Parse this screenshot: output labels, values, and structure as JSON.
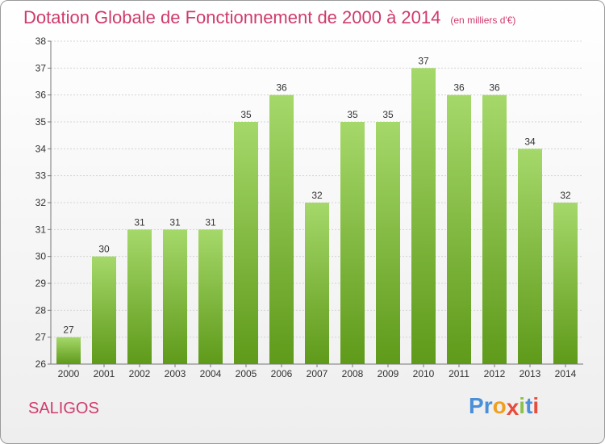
{
  "title": "Dotation Globale de Fonctionnement de 2000 à 2014",
  "unit": "(en milliers d'€)",
  "city": "SALIGOS",
  "logo": [
    "P",
    "r",
    "o",
    "x",
    "i",
    "t",
    "i"
  ],
  "colors": {
    "title": "#d03a6b",
    "bar_top": "#a5d86a",
    "bar_bottom": "#5f9a1a",
    "logo": [
      "#4a8fd8",
      "#4a8fd8",
      "#f0a020",
      "#e84c3c",
      "#8bc34a",
      "#4a8fd8",
      "#e84c3c"
    ]
  },
  "chart_data": {
    "type": "bar",
    "categories": [
      "2000",
      "2001",
      "2002",
      "2003",
      "2004",
      "2005",
      "2006",
      "2007",
      "2008",
      "2009",
      "2010",
      "2011",
      "2012",
      "2013",
      "2014"
    ],
    "values": [
      27,
      30,
      31,
      31,
      31,
      35,
      36,
      32,
      35,
      35,
      37,
      36,
      36,
      34,
      32
    ],
    "ylim": [
      26,
      38
    ],
    "yticks": [
      26,
      27,
      28,
      29,
      30,
      31,
      32,
      33,
      34,
      35,
      36,
      37,
      38
    ],
    "grid": true,
    "data_labels": true
  }
}
